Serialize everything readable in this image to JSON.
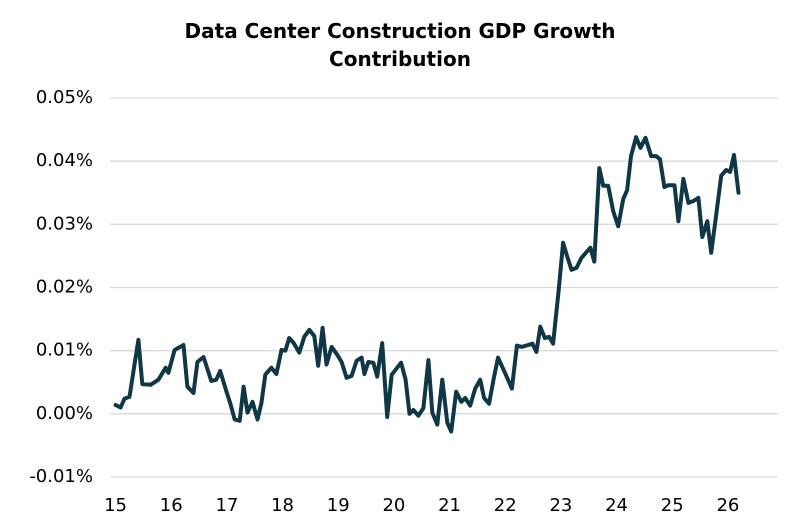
{
  "chart_data": {
    "type": "line",
    "title": "Data Center Construction GDP Growth Contribution",
    "x": [
      15.0,
      15.09,
      15.16,
      15.25,
      15.34,
      15.41,
      15.48,
      15.63,
      15.77,
      15.9,
      15.95,
      16.06,
      16.22,
      16.29,
      16.4,
      16.47,
      16.58,
      16.72,
      16.81,
      16.88,
      16.99,
      17.06,
      17.14,
      17.23,
      17.3,
      17.37,
      17.46,
      17.55,
      17.62,
      17.69,
      17.8,
      17.89,
      17.98,
      18.05,
      18.12,
      18.2,
      18.3,
      18.39,
      18.48,
      18.57,
      18.64,
      18.72,
      18.79,
      18.88,
      18.97,
      19.06,
      19.15,
      19.24,
      19.33,
      19.42,
      19.47,
      19.54,
      19.63,
      19.7,
      19.79,
      19.88,
      19.96,
      20.06,
      20.13,
      20.21,
      20.28,
      20.35,
      20.44,
      20.53,
      20.62,
      20.69,
      20.78,
      20.87,
      20.96,
      21.03,
      21.12,
      21.21,
      21.28,
      21.37,
      21.46,
      21.55,
      21.62,
      21.71,
      21.79,
      21.87,
      21.98,
      22.12,
      22.21,
      22.3,
      22.41,
      22.49,
      22.56,
      22.63,
      22.71,
      22.79,
      22.86,
      22.96,
      23.04,
      23.11,
      23.19,
      23.28,
      23.37,
      23.46,
      23.53,
      23.6,
      23.69,
      23.76,
      23.85,
      23.94,
      24.03,
      24.12,
      24.19,
      24.26,
      24.35,
      24.43,
      24.52,
      24.62,
      24.71,
      24.78,
      24.86,
      24.93,
      25.04,
      25.11,
      25.2,
      25.29,
      25.38,
      25.47,
      25.54,
      25.63,
      25.7,
      25.79,
      25.88,
      25.97,
      26.04,
      26.11,
      26.19
    ],
    "series": [
      {
        "color": "#0f3746",
        "values": [
          0.0014,
          0.001,
          0.0024,
          0.0027,
          0.0078,
          0.0117,
          0.0047,
          0.0046,
          0.0054,
          0.0073,
          0.0065,
          0.0101,
          0.0109,
          0.0043,
          0.0033,
          0.0082,
          0.009,
          0.0052,
          0.0054,
          0.0068,
          0.0036,
          0.0017,
          -0.0009,
          -0.0011,
          0.0043,
          0.0002,
          0.0019,
          -0.0009,
          0.0017,
          0.0062,
          0.0073,
          0.0063,
          0.0101,
          0.01,
          0.012,
          0.0112,
          0.0097,
          0.0122,
          0.0133,
          0.0123,
          0.0076,
          0.0136,
          0.0078,
          0.0106,
          0.0095,
          0.0082,
          0.0057,
          0.006,
          0.0084,
          0.0089,
          0.0063,
          0.0082,
          0.0081,
          0.0059,
          0.0112,
          -0.0005,
          0.0062,
          0.0073,
          0.0081,
          0.0054,
          0.0,
          0.0006,
          -0.0003,
          0.0009,
          0.0085,
          0.0002,
          -0.0017,
          0.0054,
          -0.0014,
          -0.0028,
          0.0035,
          0.0019,
          0.0025,
          0.0013,
          0.004,
          0.0054,
          0.0025,
          0.0016,
          0.0054,
          0.0089,
          0.0068,
          0.004,
          0.0108,
          0.0106,
          0.0109,
          0.0111,
          0.0098,
          0.0138,
          0.012,
          0.0122,
          0.0111,
          0.0196,
          0.0271,
          0.025,
          0.0228,
          0.0231,
          0.0247,
          0.0256,
          0.0263,
          0.0241,
          0.0389,
          0.0361,
          0.0361,
          0.0321,
          0.0297,
          0.034,
          0.0354,
          0.0408,
          0.0438,
          0.0421,
          0.0437,
          0.0408,
          0.0408,
          0.0403,
          0.0359,
          0.0362,
          0.0362,
          0.0305,
          0.0372,
          0.0334,
          0.0337,
          0.0342,
          0.028,
          0.0305,
          0.0255,
          0.0315,
          0.0377,
          0.0386,
          0.0383,
          0.041,
          0.035
        ]
      }
    ],
    "xlim": [
      14.9,
      26.9
    ],
    "xticks": [
      15,
      16,
      17,
      18,
      19,
      20,
      21,
      22,
      23,
      24,
      25,
      26
    ],
    "ylim": [
      -0.01,
      0.05
    ],
    "yticks": [
      {
        "value": -0.01,
        "label": "-0.01%"
      },
      {
        "value": 0,
        "label": "0.00%"
      },
      {
        "value": 0.01,
        "label": "0.01%"
      },
      {
        "value": 0.02,
        "label": "0.02%"
      },
      {
        "value": 0.03,
        "label": "0.03%"
      },
      {
        "value": 0.04,
        "label": "0.04%"
      },
      {
        "value": 0.05,
        "label": "0.05%"
      }
    ],
    "grid": true
  }
}
